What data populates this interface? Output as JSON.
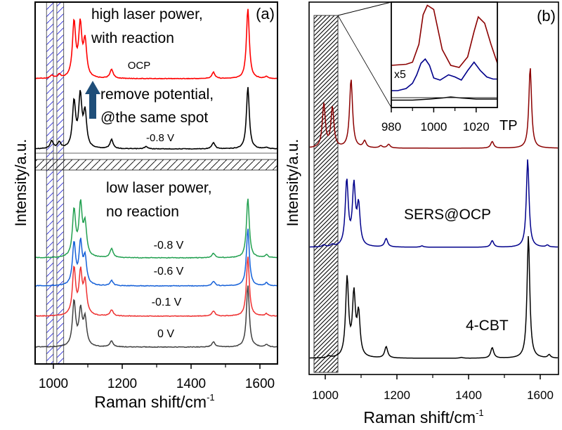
{
  "chart_data": [
    {
      "panel": "a",
      "type": "line",
      "panel_label": "(a)",
      "xlabel": "Raman shift/cm",
      "xlabel_superscript": "-1",
      "ylabel": "Intensity/a.u.",
      "xlim": [
        950,
        1650
      ],
      "xticks": [
        1000,
        1200,
        1400,
        1600
      ],
      "xtick_labels": [
        "1000",
        "1200",
        "1400",
        "1600"
      ],
      "minor_xticks": [
        1100,
        1300,
        1500
      ],
      "y_ticks_shown": false,
      "axis_break": true,
      "highlight_bands_x": [
        [
          980,
          1000
        ],
        [
          1010,
          1030
        ]
      ],
      "upper_section": {
        "annotation": [
          "high laser power,",
          "with reaction"
        ],
        "arrow_text": [
          "remove potential,",
          "@the same spot"
        ],
        "arrow_color": "#1f4e79",
        "series": [
          {
            "name": "OCP",
            "label": "OCP",
            "color": "#ff0000",
            "baseline": 0,
            "peaks": [
              [
                996,
                0.04
              ],
              [
                1018,
                0.05
              ],
              [
                1061,
                0.78
              ],
              [
                1079,
                0.72
              ],
              [
                1093,
                0.5
              ],
              [
                1170,
                0.13
              ],
              [
                1466,
                0.09
              ],
              [
                1566,
                1.0
              ],
              [
                1620,
                0.03
              ]
            ]
          },
          {
            "name": "-0.8 V (high power)",
            "label": "-0.8 V",
            "color": "#000000",
            "baseline": 0,
            "peaks": [
              [
                996,
                0.1
              ],
              [
                1018,
                0.08
              ],
              [
                1061,
                0.6
              ],
              [
                1079,
                0.67
              ],
              [
                1093,
                0.45
              ],
              [
                1170,
                0.12
              ],
              [
                1270,
                0.03
              ],
              [
                1466,
                0.08
              ],
              [
                1566,
                0.82
              ],
              [
                1620,
                0.02
              ]
            ]
          }
        ]
      },
      "lower_section": {
        "annotation": [
          "low laser power,",
          "no reaction"
        ],
        "series": [
          {
            "name": "-0.8 V",
            "label": "-0.8 V",
            "color": "#22a050",
            "peaks": [
              [
                1061,
                0.62
              ],
              [
                1080,
                0.68
              ],
              [
                1093,
                0.42
              ],
              [
                1170,
                0.12
              ],
              [
                1466,
                0.06
              ],
              [
                1566,
                0.8
              ],
              [
                1620,
                0.04
              ]
            ]
          },
          {
            "name": "-0.6 V",
            "label": "-0.6 V",
            "color": "#1560d8",
            "peaks": [
              [
                1061,
                0.56
              ],
              [
                1080,
                0.55
              ],
              [
                1093,
                0.35
              ],
              [
                1170,
                0.07
              ],
              [
                1466,
                0.06
              ],
              [
                1566,
                0.77
              ],
              [
                1620,
                0.04
              ]
            ]
          },
          {
            "name": "-0.1 V",
            "label": "-0.1 V",
            "color": "#ee3030",
            "peaks": [
              [
                1061,
                0.63
              ],
              [
                1080,
                0.55
              ],
              [
                1093,
                0.43
              ],
              [
                1170,
                0.08
              ],
              [
                1466,
                0.07
              ],
              [
                1566,
                0.8
              ],
              [
                1620,
                0.03
              ]
            ]
          },
          {
            "name": "0 V",
            "label": "0 V",
            "color": "#404040",
            "peaks": [
              [
                1061,
                0.6
              ],
              [
                1080,
                0.47
              ],
              [
                1093,
                0.36
              ],
              [
                1170,
                0.08
              ],
              [
                1466,
                0.07
              ],
              [
                1566,
                0.83
              ],
              [
                1620,
                0.03
              ]
            ]
          }
        ]
      }
    },
    {
      "panel": "b",
      "type": "line",
      "panel_label": "(b)",
      "xlabel": "Raman shift/cm",
      "xlabel_superscript": "-1",
      "ylabel": "Intensity/a.u.",
      "xlim": [
        955,
        1650
      ],
      "xticks": [
        1000,
        1200,
        1400,
        1600
      ],
      "xtick_labels": [
        "1000",
        "1200",
        "1400",
        "1600"
      ],
      "minor_xticks": [
        1100,
        1300,
        1500
      ],
      "y_ticks_shown": false,
      "highlight_band_x": [
        968,
        1035
      ],
      "series": [
        {
          "name": "TP",
          "label": "TP",
          "color": "#8b0000",
          "peaks": [
            [
              996,
              0.59
            ],
            [
              1020,
              0.54
            ],
            [
              1072,
              0.93
            ],
            [
              1110,
              0.09
            ],
            [
              1155,
              0.03
            ],
            [
              1177,
              0.05
            ],
            [
              1466,
              0.09
            ],
            [
              1572,
              1.1
            ]
          ]
        },
        {
          "name": "SERS@OCP",
          "label": "SERS@OCP",
          "color": "#00008b",
          "peaks": [
            [
              996,
              0.03
            ],
            [
              1020,
              0.03
            ],
            [
              1060,
              1.0
            ],
            [
              1080,
              0.9
            ],
            [
              1093,
              0.6
            ],
            [
              1170,
              0.13
            ],
            [
              1270,
              0.02
            ],
            [
              1466,
              0.1
            ],
            [
              1565,
              1.35
            ],
            [
              1620,
              0.03
            ]
          ]
        },
        {
          "name": "4-CBT",
          "label": "4-CBT",
          "color": "#000000",
          "peaks": [
            [
              1010,
              0.02
            ],
            [
              1061,
              0.97
            ],
            [
              1080,
              0.75
            ],
            [
              1093,
              0.52
            ],
            [
              1170,
              0.14
            ],
            [
              1380,
              0.01
            ],
            [
              1466,
              0.13
            ],
            [
              1567,
              1.52
            ],
            [
              1625,
              0.04
            ]
          ]
        }
      ],
      "inset": {
        "xlim": [
          980,
          1030
        ],
        "xticks": [
          980,
          1000,
          1020
        ],
        "xtick_labels": [
          "980",
          "1000",
          "1020"
        ],
        "minor_xticks": [
          990,
          1010
        ],
        "annotation": "x5",
        "series": [
          {
            "name": "TP",
            "color": "#8b0000",
            "x": [
              980,
              987,
              990,
              993,
              995,
              997,
              1000,
              1004,
              1008,
              1012,
              1016,
              1019,
              1021,
              1024,
              1027,
              1030
            ],
            "y": [
              0.4,
              0.41,
              0.43,
              0.6,
              0.88,
              0.97,
              0.93,
              0.55,
              0.4,
              0.38,
              0.48,
              0.72,
              0.86,
              0.8,
              0.6,
              0.42
            ]
          },
          {
            "name": "SERS@OCP",
            "color": "#00008b",
            "x": [
              980,
              983,
              987,
              990,
              992,
              994,
              996,
              998,
              1000,
              1003,
              1007,
              1010,
              1013,
              1016,
              1019,
              1022,
              1025,
              1028,
              1030
            ],
            "y": [
              0.16,
              0.16,
              0.18,
              0.23,
              0.31,
              0.42,
              0.46,
              0.4,
              0.28,
              0.26,
              0.31,
              0.29,
              0.26,
              0.35,
              0.43,
              0.35,
              0.29,
              0.27,
              0.27
            ]
          },
          {
            "name": "4-CBT",
            "color": "#000000",
            "x": [
              980,
              990,
              998,
              1004,
              1008,
              1013,
              1020,
              1030
            ],
            "y": [
              0.07,
              0.07,
              0.08,
              0.09,
              0.1,
              0.09,
              0.08,
              0.08
            ]
          }
        ]
      }
    }
  ]
}
